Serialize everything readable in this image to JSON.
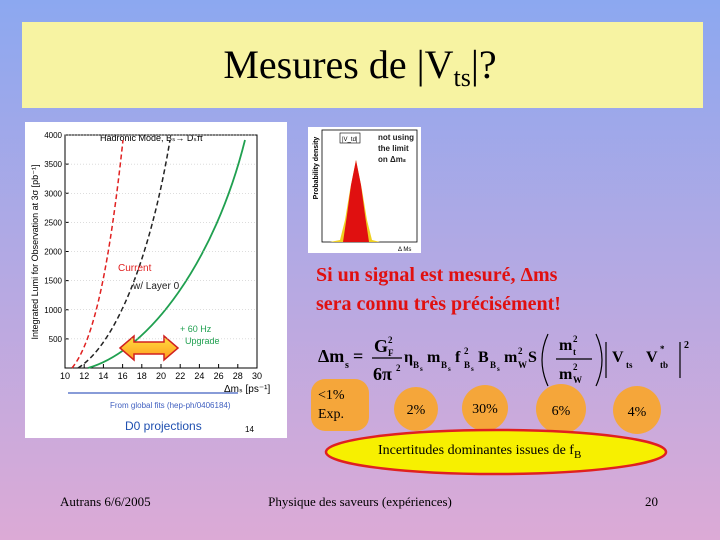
{
  "title": {
    "main": "Mesures de |V",
    "sub": "ts",
    "end": "|?"
  },
  "left_figure": {
    "header": "Hadronic Mode, Bₛ→ Dₛπ",
    "y_label": "Integrated Lumi for Observation at 3σ  [pb⁻¹]",
    "ylim": [
      0,
      4000
    ],
    "yticks": [
      500,
      1000,
      1500,
      2000,
      2500,
      3000,
      3500,
      4000
    ],
    "xlim": [
      10,
      30
    ],
    "xticks": [
      10,
      12,
      14,
      16,
      18,
      20,
      22,
      24,
      26,
      28,
      30
    ],
    "x_label": "Δmₛ [ps⁻¹]",
    "legend": [
      "Current",
      "w/ Layer 0",
      "+ 60 Hz",
      "Upgrade"
    ],
    "footnote": "From global fits (hep-ph/0406184)",
    "caption": "D0 projections",
    "page": "14"
  },
  "right_figure": {
    "y_label": "Probability density",
    "box": "|V_td|",
    "annotation": [
      "not using",
      "the limit",
      "on Δmₛ"
    ],
    "x_label": "Δ Ms"
  },
  "statement": [
    "Si un signal est mesuré, Δms",
    "sera connu très précisément!"
  ],
  "formula": [
    "Δm",
    "s",
    "=",
    "G",
    "2",
    "F",
    "6π",
    "2",
    "η",
    "B",
    "s",
    "m",
    "B",
    "s",
    "f",
    "2",
    "B",
    "s",
    "B",
    "B",
    "s",
    "m",
    "2",
    "W",
    "S",
    "m",
    "2",
    "t",
    "m",
    "2",
    "W",
    "V",
    "ts",
    "V",
    "*",
    "tb",
    "2"
  ],
  "uncertainties": [
    [
      "<1%",
      "Exp."
    ],
    [
      "2%"
    ],
    [
      "30%"
    ],
    [
      "6%"
    ],
    [
      "4%"
    ]
  ],
  "banner": {
    "main": "Incertitudes dominantes issues de f",
    "sub": "B"
  },
  "footer": {
    "left": "Autrans 6/6/2005",
    "center": "Physique des saveurs (expériences)",
    "right": "20"
  }
}
